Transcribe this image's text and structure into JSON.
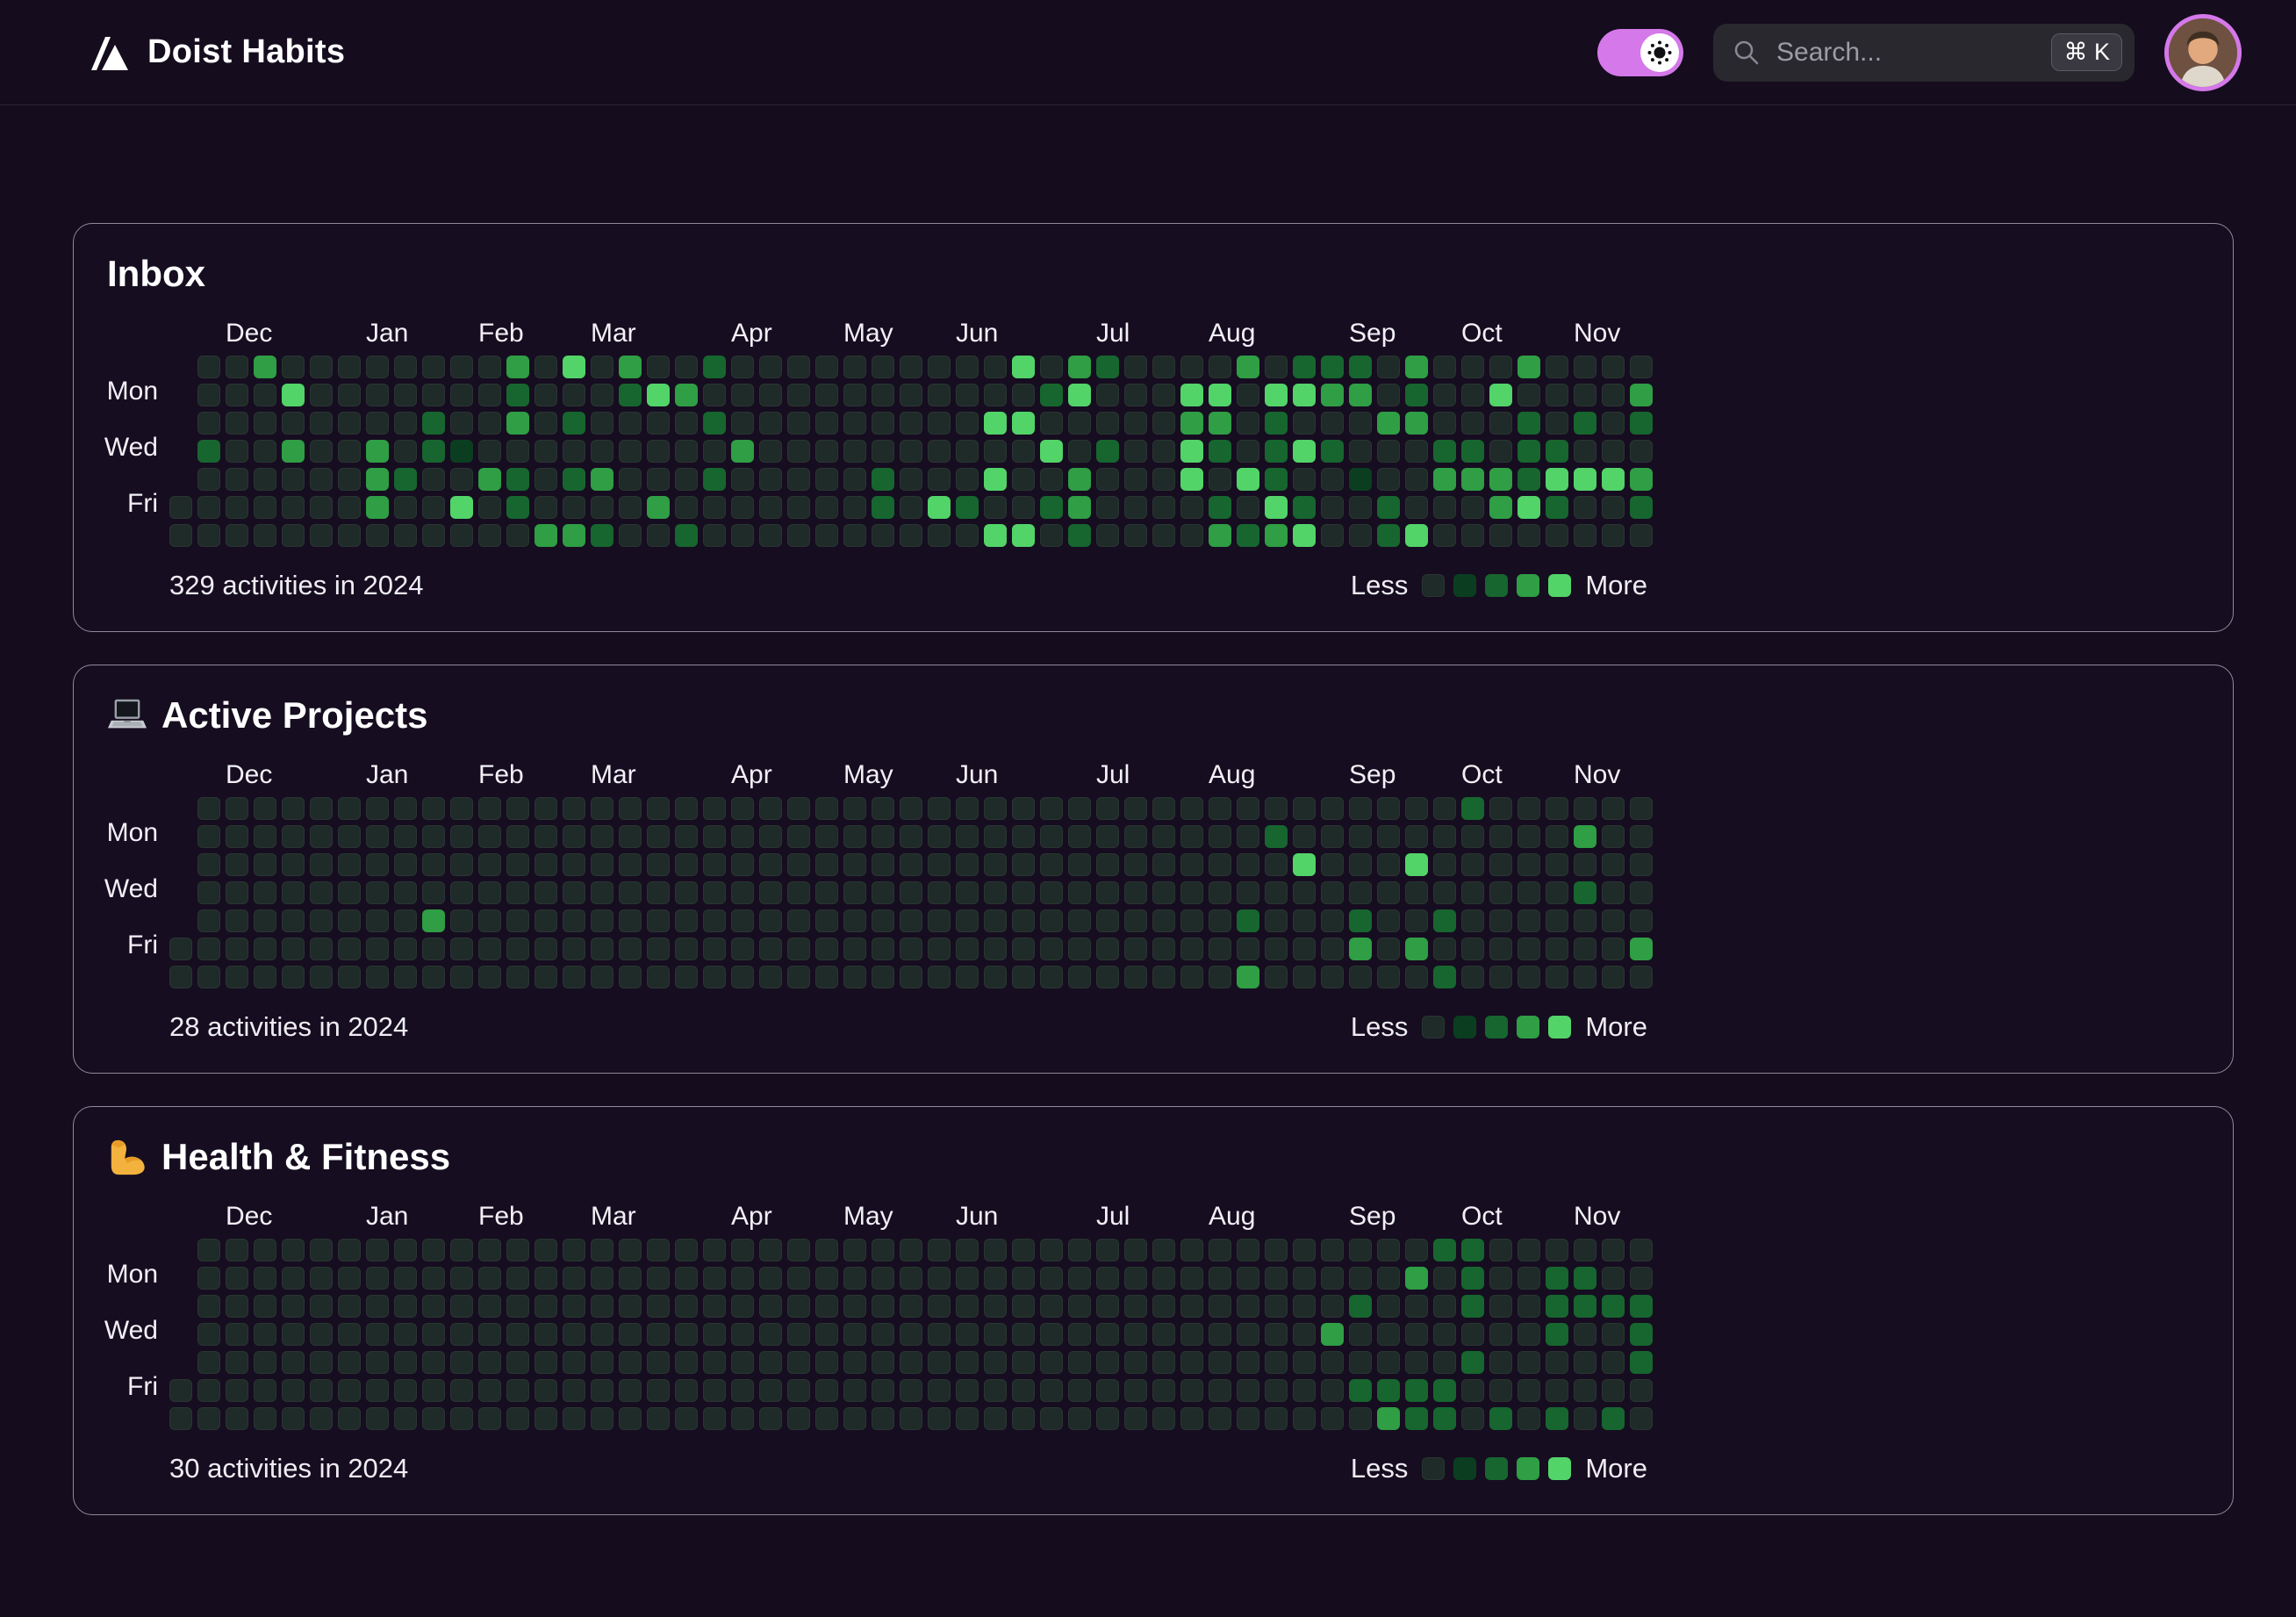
{
  "app": {
    "title": "Doist Habits"
  },
  "header": {
    "search_placeholder": "Search...",
    "search_shortcut": "⌘ K",
    "theme_toggle_state": "on",
    "logo_icon": "triangle-slash-logo",
    "avatar": "user-profile-photo"
  },
  "colors": {
    "page_bg": "#150c1e",
    "card_bg": "#160d20",
    "accent_pink": "#d478ea",
    "level0": "#1f2b28",
    "level1": "#0b3e21",
    "level2": "#17662f",
    "level3": "#2f9e44",
    "level4": "#52d469"
  },
  "legend": {
    "less": "Less",
    "more": "More"
  },
  "months": [
    {
      "label": "Dec",
      "col": 2
    },
    {
      "label": "Jan",
      "col": 7
    },
    {
      "label": "Feb",
      "col": 11
    },
    {
      "label": "Mar",
      "col": 15
    },
    {
      "label": "Apr",
      "col": 20
    },
    {
      "label": "May",
      "col": 24
    },
    {
      "label": "Jun",
      "col": 28
    },
    {
      "label": "Jul",
      "col": 33
    },
    {
      "label": "Aug",
      "col": 37
    },
    {
      "label": "Sep",
      "col": 42
    },
    {
      "label": "Oct",
      "col": 46
    },
    {
      "label": "Nov",
      "col": 50
    }
  ],
  "day_labels": [
    {
      "label": "Mon",
      "row": 1
    },
    {
      "label": "Wed",
      "row": 3
    },
    {
      "label": "Fri",
      "row": 5
    }
  ],
  "charts": [
    {
      "title": "Inbox",
      "icon": null,
      "footer": "329 activities in 2024",
      "weeks": [
        "xxxxx00",
        "0002000",
        "0000000",
        "3000000",
        "0403000",
        "0000000",
        "0000000",
        "0003330",
        "0000200",
        "0022000",
        "0001040",
        "0000300",
        "3230220",
        "0000003",
        "4020203",
        "0000302",
        "3200000",
        "0400030",
        "0300002",
        "2020200",
        "0003000",
        "0000000",
        "0000000",
        "0000000",
        "0000000",
        "0000220",
        "0000000",
        "0000040",
        "0000020",
        "0040404",
        "4040004",
        "0204020",
        "3400332",
        "2002000",
        "0000000",
        "0000000",
        "0434400",
        "0432023",
        "3000402",
        "0422243",
        "2404024",
        "2302000",
        "2300100",
        "0030022",
        "3230004",
        "0002300",
        "0002300",
        "0400330",
        "3022240",
        "0002420",
        "0020400",
        "0000400",
        "0320320"
      ]
    },
    {
      "title": "Active Projects",
      "icon": "laptop-emoji",
      "footer": "28 activities in 2024",
      "weeks": [
        "xxxxx00",
        "0000000",
        "0000000",
        "0000000",
        "0000000",
        "0000000",
        "0000000",
        "0000000",
        "0000000",
        "0000300",
        "0000000",
        "0000000",
        "0000000",
        "0000000",
        "0000000",
        "0000000",
        "0000000",
        "0000000",
        "0000000",
        "0000000",
        "0000000",
        "0000000",
        "0000000",
        "0000000",
        "0000000",
        "0000000",
        "0000000",
        "0000000",
        "0000000",
        "0000000",
        "0000000",
        "0000000",
        "0000000",
        "0000000",
        "0000000",
        "0000000",
        "0000000",
        "0000000",
        "0000203",
        "0200000",
        "0040000",
        "0000000",
        "0000230",
        "0000000",
        "0040030",
        "0000202",
        "2000000",
        "0000000",
        "0000000",
        "0000000",
        "0302000",
        "0000000",
        "0000030"
      ]
    },
    {
      "title": "Health & Fitness",
      "icon": "muscle-emoji",
      "footer": "30 activities in 2024",
      "weeks": [
        "xxxxx00",
        "0000000",
        "0000000",
        "0000000",
        "0000000",
        "0000000",
        "0000000",
        "0000000",
        "0000000",
        "0000000",
        "0000000",
        "0000000",
        "0000000",
        "0000000",
        "0000000",
        "0000000",
        "0000000",
        "0000000",
        "0000000",
        "0000000",
        "0000000",
        "0000000",
        "0000000",
        "0000000",
        "0000000",
        "0000000",
        "0000000",
        "0000000",
        "0000000",
        "0000000",
        "0000000",
        "0000000",
        "0000000",
        "0000000",
        "0000000",
        "0000000",
        "0000000",
        "0000000",
        "0000000",
        "0000000",
        "0000000",
        "0003000",
        "0020020",
        "0000023",
        "0300022",
        "2000022",
        "2220200",
        "0000002",
        "0000000",
        "0222002",
        "0220000",
        "0020002",
        "0022200"
      ]
    }
  ]
}
